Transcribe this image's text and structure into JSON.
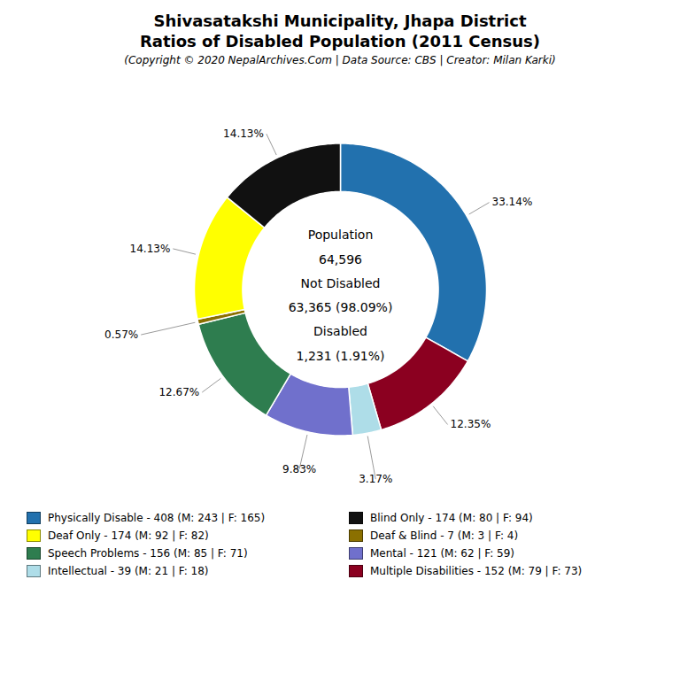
{
  "chart_data": {
    "type": "donut",
    "title": "Shivasatakshi Municipality, Jhapa District\nRatios of Disabled Population (2011 Census)",
    "subtitle": "(Copyright © 2020 NepalArchives.Com | Data Source: CBS | Creator: Milan Karki)",
    "categories": [
      "Physically Disable - 408 (M: 243 | F: 165)",
      "Multiple Disabilities - 152 (M: 79 | F: 73)",
      "Intellectual - 39 (M: 21 | F: 18)",
      "Mental - 121 (M: 62 | F: 59)",
      "Speech Problems - 156 (M: 85 | F: 71)",
      "Deaf & Blind - 7 (M: 3 | F: 4)",
      "Deaf Only - 174 (M: 92 | F: 82)",
      "Blind Only - 174 (M: 80 | F: 94)"
    ],
    "values": [
      33.14,
      12.35,
      3.17,
      9.83,
      12.67,
      0.57,
      14.13,
      14.13
    ],
    "value_labels": [
      "33.14%",
      "12.35%",
      "3.17%",
      "9.83%",
      "12.67%",
      "0.57%",
      "14.13%",
      "14.13%"
    ],
    "colors": [
      "#2271ae",
      "#8b0020",
      "#aedde8",
      "#7070cc",
      "#2e7d4f",
      "#8b7000",
      "#ffff00",
      "#111111"
    ],
    "data_labels": true,
    "legend": "bottom",
    "legend_entries": [
      "Physically Disable - 408 (M: 243 | F: 165)",
      "Deaf Only - 174 (M: 92 | F: 82)",
      "Speech Problems - 156 (M: 85 | F: 71)",
      "Intellectual - 39 (M: 21 | F: 18)",
      "Blind Only - 174 (M: 80 | F: 94)",
      "Deaf & Blind - 7 (M: 3 | F: 4)",
      "Mental - 121 (M: 62 | F: 59)",
      "Multiple Disabilities - 152 (M: 79 | F: 73)"
    ],
    "annotations": [
      "Population",
      "64,596",
      "Not Disabled",
      "63,365 (98.09%)",
      "Disabled",
      "1,231 (1.91%)"
    ]
  }
}
